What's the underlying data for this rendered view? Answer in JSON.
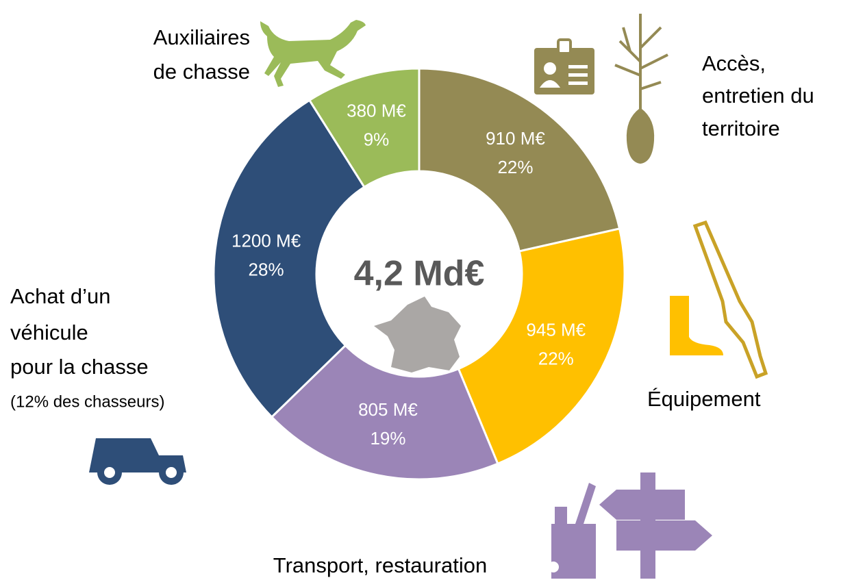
{
  "chart_data": {
    "type": "donut",
    "center_label": "4,2 Md€",
    "categories": [
      [
        "Accès,",
        "entretien du",
        "territoire"
      ],
      [
        "Équipement"
      ],
      [
        "Transport, restauration"
      ],
      [
        "Achat d’un",
        "véhicule",
        "pour la chasse"
      ],
      [
        "Auxiliaires",
        "de chasse"
      ]
    ],
    "annotation": "(12% des chasseurs)",
    "values": [
      910,
      945,
      805,
      1200,
      380
    ],
    "value_labels": [
      "910 M€",
      "945 M€",
      "805 M€",
      "1200 M€",
      "380 M€"
    ],
    "percentages": [
      22,
      22,
      19,
      28,
      9
    ],
    "percentage_labels": [
      "22%",
      "22%",
      "19%",
      "28%",
      "9%"
    ],
    "colors": [
      "#948a54",
      "#ffc000",
      "#9b85b7",
      "#2e4e78",
      "#9bbb59"
    ]
  }
}
